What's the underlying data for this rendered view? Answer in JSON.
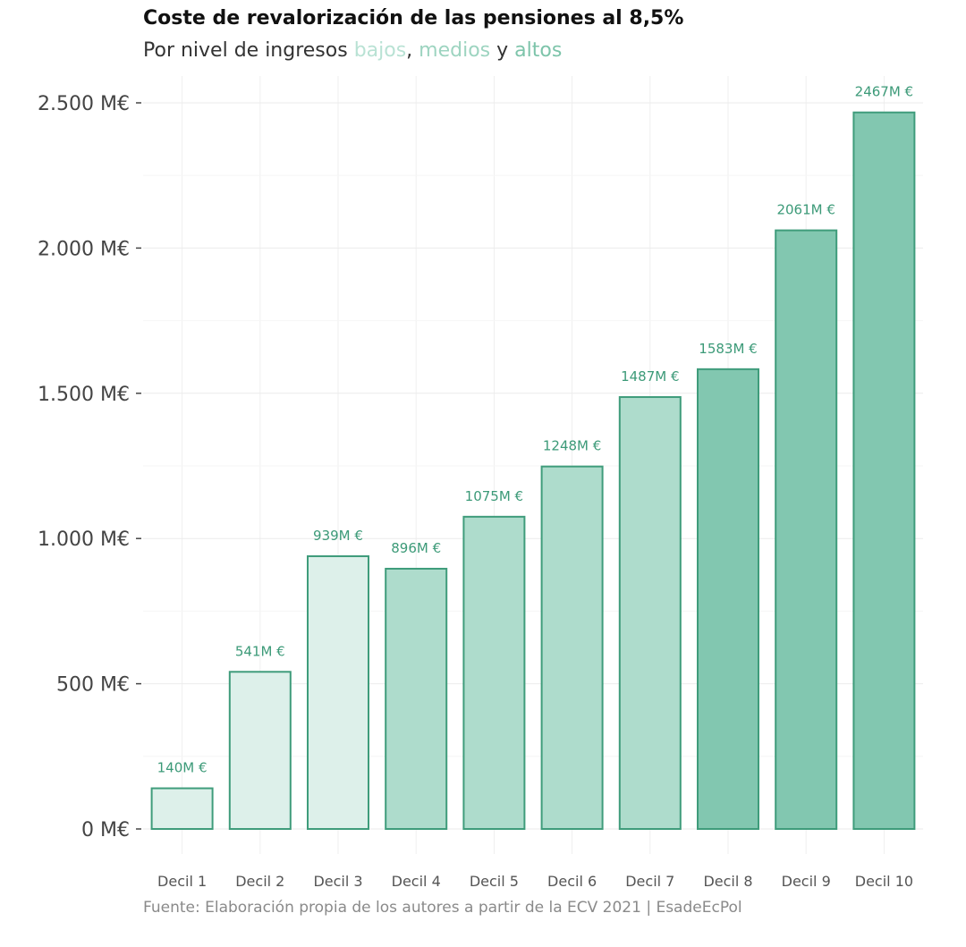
{
  "chart_data": {
    "type": "bar",
    "title": "Coste de revalorización de las pensiones al 8,5%",
    "subtitle": {
      "prefix": "Por nivel de ingresos ",
      "low": "bajos",
      "sep1": ", ",
      "mid": "medios",
      "sep2": " y ",
      "high": "altos"
    },
    "categories": [
      "Decil 1",
      "Decil 2",
      "Decil 3",
      "Decil 4",
      "Decil 5",
      "Decil 6",
      "Decil 7",
      "Decil 8",
      "Decil 9",
      "Decil 10"
    ],
    "values": [
      140,
      541,
      939,
      896,
      1075,
      1248,
      1487,
      1583,
      2061,
      2467
    ],
    "data_labels": [
      "140M €",
      "541M €",
      "939M €",
      "896M €",
      "1075M €",
      "1248M €",
      "1487M €",
      "1583M €",
      "2061M €",
      "2467M €"
    ],
    "groups": [
      "low",
      "low",
      "low",
      "mid",
      "mid",
      "mid",
      "mid",
      "high",
      "high",
      "high"
    ],
    "yticks": [
      0,
      500,
      1000,
      1500,
      2000,
      2500
    ],
    "ytick_labels": [
      "0 M€",
      "500 M€",
      "1.000 M€",
      "1.500 M€",
      "2.000 M€",
      "2.500 M€"
    ],
    "ylim": [
      0,
      2500
    ],
    "xlabel": "",
    "ylabel": "",
    "grid": true,
    "caption": "Fuente: Elaboración propia de los autores a partir de la ECV 2021 | EsadeEcPol",
    "colors": {
      "low": "#ddf0ea",
      "mid": "#aedccc",
      "high": "#82c7b0",
      "stroke": "#3f9c7b",
      "label": "#3c9a78",
      "subtitle_low": "#b9e2d4",
      "subtitle_mid": "#9dd4c0",
      "subtitle_high": "#7dc4aa"
    }
  }
}
